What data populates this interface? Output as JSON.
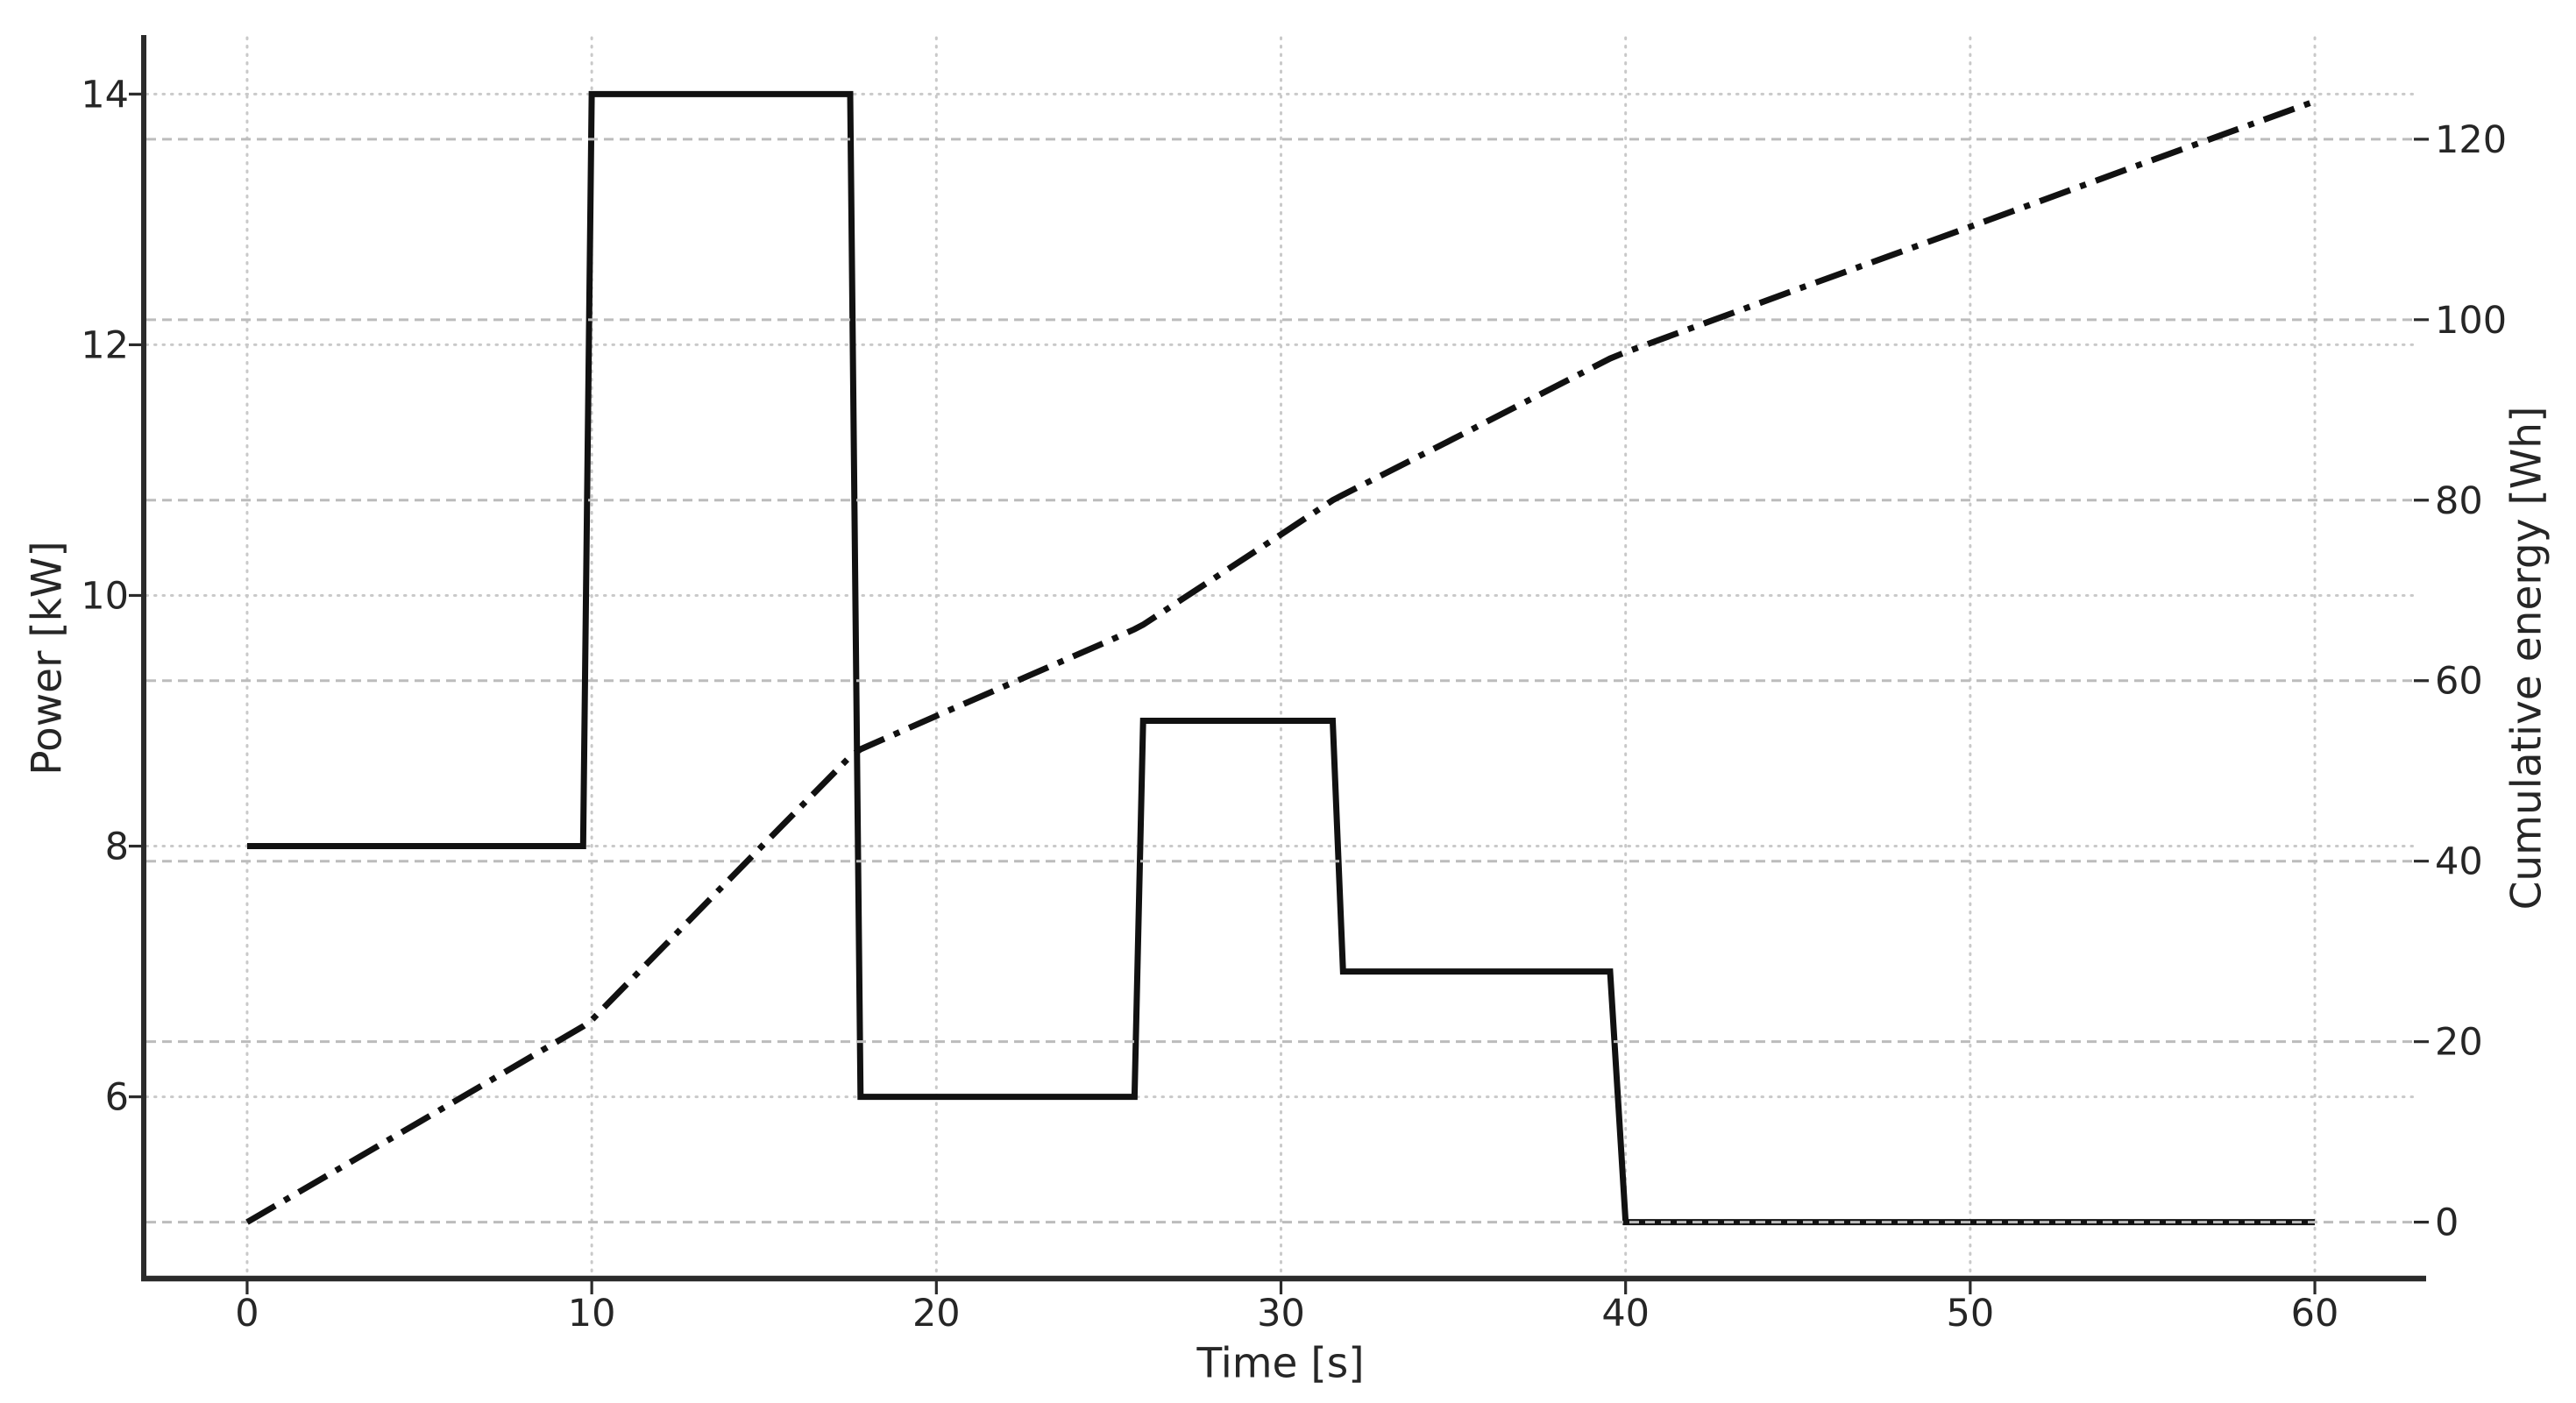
{
  "chart_data": {
    "type": "line",
    "title": "",
    "xlabel": "Time [s]",
    "ylabel_left": "Power [kW]",
    "ylabel_right": "Cumulative energy [Wh]",
    "xlim": [
      -3,
      63
    ],
    "ylim_left": [
      4.55,
      14.45
    ],
    "ylim_right": [
      -6.25,
      131.25
    ],
    "xticks": [
      0,
      10,
      20,
      30,
      40,
      50,
      60
    ],
    "yticks_left": [
      6,
      8,
      10,
      12,
      14
    ],
    "yticks_right": [
      0,
      20,
      40,
      60,
      80,
      100,
      120
    ],
    "grid": {
      "x": "dotted",
      "y_left": "dotted",
      "y_right": "dashed"
    },
    "legend": "none",
    "series": [
      {
        "name": "Power [kW]",
        "axis": "left",
        "line_style": "solid",
        "color": "#111111",
        "points": [
          [
            0,
            8
          ],
          [
            9.75,
            8
          ],
          [
            10,
            14
          ],
          [
            17.5,
            14
          ],
          [
            17.8,
            6
          ],
          [
            25.75,
            6
          ],
          [
            26,
            9
          ],
          [
            31.5,
            9
          ],
          [
            31.8,
            7
          ],
          [
            39.55,
            7
          ],
          [
            40,
            5
          ],
          [
            60,
            5
          ]
        ]
      },
      {
        "name": "Cumulative energy [Wh]",
        "axis": "right",
        "line_style": "dashdot",
        "color": "#111111",
        "points": [
          [
            0,
            0
          ],
          [
            5,
            11.1
          ],
          [
            9.75,
            21.7
          ],
          [
            10,
            22.4
          ],
          [
            15,
            41.9
          ],
          [
            17.5,
            51.6
          ],
          [
            17.8,
            52.4
          ],
          [
            20,
            56.1
          ],
          [
            25,
            64.4
          ],
          [
            25.75,
            65.7
          ],
          [
            26,
            66.2
          ],
          [
            30,
            76.2
          ],
          [
            31.5,
            80.0
          ],
          [
            31.8,
            80.6
          ],
          [
            35,
            86.8
          ],
          [
            39.55,
            95.7
          ],
          [
            40,
            96.4
          ],
          [
            45,
            103.4
          ],
          [
            50,
            110.3
          ],
          [
            55,
            117.3
          ],
          [
            60,
            124.2
          ]
        ]
      }
    ]
  },
  "style": {
    "background": "#ffffff",
    "axis_color": "#2b2b2b",
    "text_color": "#262626",
    "series_color": "#111111",
    "grid_dotted_color": "#c9c9c9",
    "grid_dashed_color": "#bcbcbc"
  }
}
